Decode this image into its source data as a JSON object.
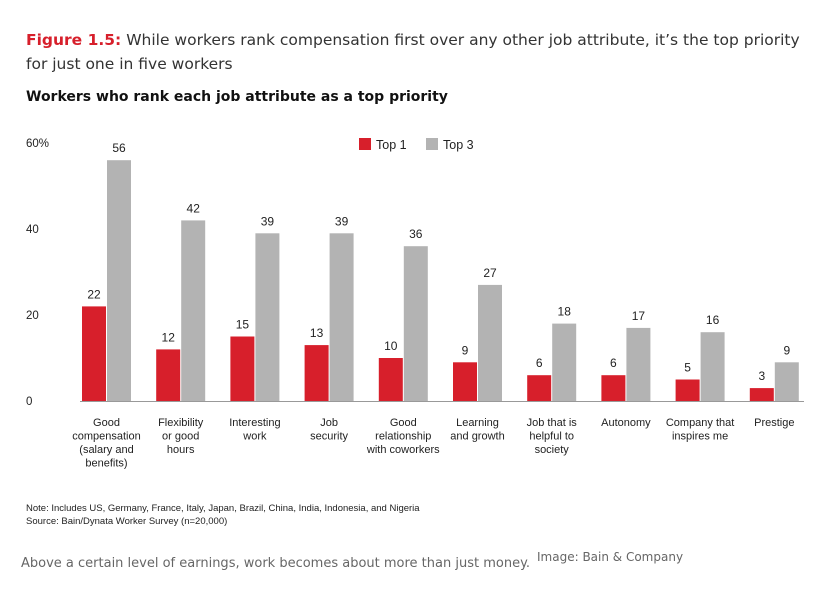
{
  "figure": {
    "label": "Figure 1.5:",
    "title": "While workers rank compensation first over any other job attribute, it’s the top priority for just one in five workers"
  },
  "chart_data": {
    "type": "bar",
    "title": "Workers who rank each job attribute as a top priority",
    "categories": [
      [
        "Good",
        "compensation",
        "(salary and",
        "benefits)"
      ],
      [
        "Flexibility",
        "or good",
        "hours"
      ],
      [
        "Interesting",
        "work"
      ],
      [
        "Job",
        "security"
      ],
      [
        "Good",
        "relationship",
        "with coworkers"
      ],
      [
        "Learning",
        "and growth"
      ],
      [
        "Job that is",
        "helpful to",
        "society"
      ],
      [
        "Autonomy"
      ],
      [
        "Company that",
        "inspires me"
      ],
      [
        "Prestige"
      ]
    ],
    "series": [
      {
        "name": "Top 1",
        "color": "#d71f2b",
        "values": [
          22,
          12,
          15,
          13,
          10,
          9,
          6,
          6,
          5,
          3
        ]
      },
      {
        "name": "Top 3",
        "color": "#b3b3b3",
        "values": [
          56,
          42,
          39,
          39,
          36,
          27,
          18,
          17,
          16,
          9
        ]
      }
    ],
    "ylim": [
      0,
      60
    ],
    "yticks": [
      "0",
      "20",
      "40",
      "60%"
    ],
    "ytick_values": [
      0,
      20,
      40,
      60
    ],
    "legend": "top-center",
    "grid": false
  },
  "notes": {
    "note": "Note: Includes US, Germany, France, Italy, Japan, Brazil, China, India, Indonesia, and Nigeria",
    "source": "Source: Bain/Dynata Worker Survey (n=20,000)"
  },
  "caption": "Above a certain level of earnings, work becomes about more than just money.",
  "credit": "Image: Bain & Company"
}
